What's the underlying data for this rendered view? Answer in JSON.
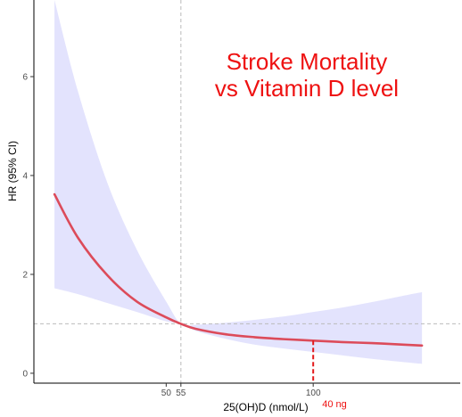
{
  "chart_data": {
    "type": "line",
    "title": "",
    "xlabel": "25(OH)D (nmol/L)",
    "ylabel": "HR (95% CI)",
    "xlim": [
      5,
      150
    ],
    "ylim": [
      -0.2,
      7.55
    ],
    "x_ticks": [
      {
        "value": 50,
        "label": "50"
      },
      {
        "value": 55,
        "label": "55"
      },
      {
        "value": 100,
        "label": "100"
      }
    ],
    "y_ticks": [
      {
        "value": 0,
        "label": "0"
      },
      {
        "value": 2,
        "label": "2"
      },
      {
        "value": 4,
        "label": "4"
      },
      {
        "value": 6,
        "label": "6"
      }
    ],
    "grid": false,
    "series": [
      {
        "x": [
          12,
          20,
          30,
          40,
          50,
          55,
          60,
          70,
          80,
          90,
          100,
          110,
          120,
          130,
          137
        ],
        "y": [
          3.62,
          2.74,
          1.98,
          1.45,
          1.13,
          1.0,
          0.9,
          0.79,
          0.73,
          0.69,
          0.66,
          0.63,
          0.61,
          0.58,
          0.56
        ],
        "ci_lower": [
          1.72,
          1.6,
          1.42,
          1.24,
          1.05,
          1.0,
          0.86,
          0.7,
          0.58,
          0.5,
          0.43,
          0.36,
          0.29,
          0.23,
          0.19
        ],
        "ci_upper": [
          7.6,
          5.7,
          3.85,
          2.5,
          1.45,
          1.0,
          0.98,
          1.02,
          1.08,
          1.15,
          1.24,
          1.33,
          1.44,
          1.56,
          1.64
        ],
        "color": "#dc4b5a",
        "ci_color": "#e3e3fd"
      }
    ],
    "reference_lines": [
      {
        "axis": "x",
        "value": 55,
        "style": "dashed",
        "color": "#bbbbbb"
      },
      {
        "axis": "y",
        "value": 1,
        "style": "dashed",
        "color": "#bbbbbb"
      }
    ],
    "highlight_line": {
      "axis": "x",
      "value": 100,
      "y_top": 0.66,
      "color": "#e31a1c",
      "label": "40 ng"
    },
    "annotation": {
      "lines": [
        "Stroke Mortality",
        "vs Vitamin D level"
      ],
      "color": "#ee1111",
      "position": "top-right"
    }
  }
}
